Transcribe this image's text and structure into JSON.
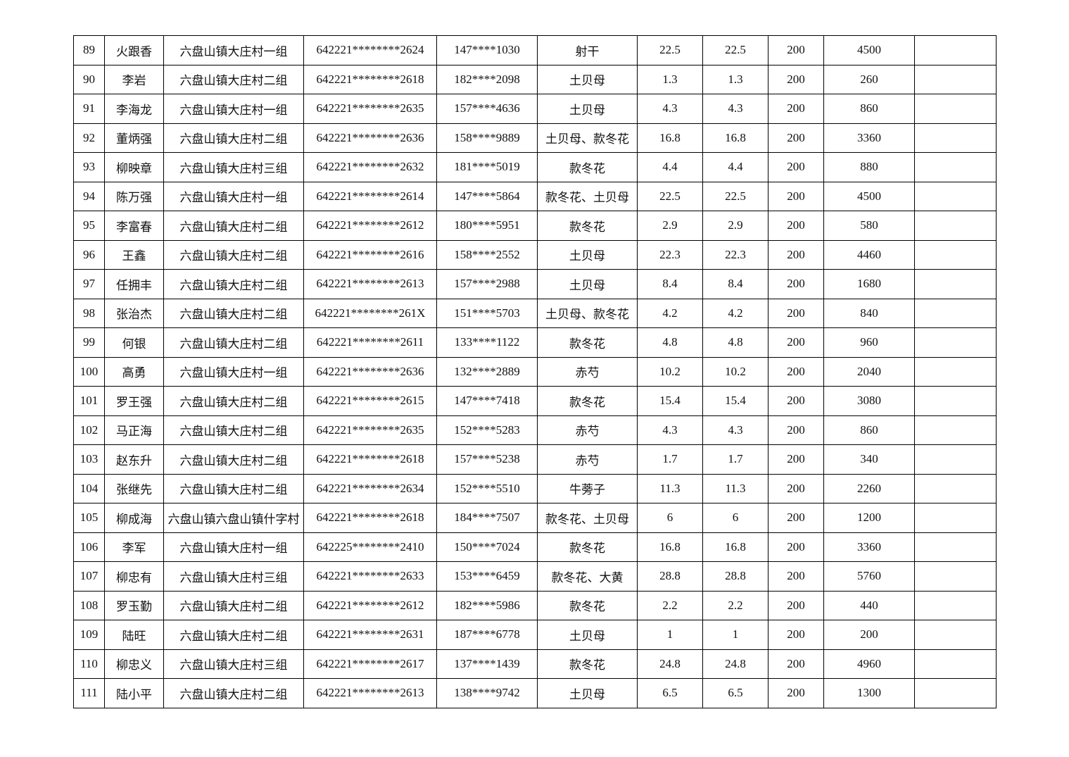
{
  "table": {
    "rows": [
      [
        "89",
        "火跟香",
        "六盘山镇大庄村一组",
        "642221********2624",
        "147****1030",
        "射干",
        "22.5",
        "22.5",
        "200",
        "4500",
        ""
      ],
      [
        "90",
        "李岩",
        "六盘山镇大庄村二组",
        "642221********2618",
        "182****2098",
        "土贝母",
        "1.3",
        "1.3",
        "200",
        "260",
        ""
      ],
      [
        "91",
        "李海龙",
        "六盘山镇大庄村一组",
        "642221********2635",
        "157****4636",
        "土贝母",
        "4.3",
        "4.3",
        "200",
        "860",
        ""
      ],
      [
        "92",
        "董炳强",
        "六盘山镇大庄村二组",
        "642221********2636",
        "158****9889",
        "土贝母、款冬花",
        "16.8",
        "16.8",
        "200",
        "3360",
        ""
      ],
      [
        "93",
        "柳映章",
        "六盘山镇大庄村三组",
        "642221********2632",
        "181****5019",
        "款冬花",
        "4.4",
        "4.4",
        "200",
        "880",
        ""
      ],
      [
        "94",
        "陈万强",
        "六盘山镇大庄村一组",
        "642221********2614",
        "147****5864",
        "款冬花、土贝母",
        "22.5",
        "22.5",
        "200",
        "4500",
        ""
      ],
      [
        "95",
        "李富春",
        "六盘山镇大庄村二组",
        "642221********2612",
        "180****5951",
        "款冬花",
        "2.9",
        "2.9",
        "200",
        "580",
        ""
      ],
      [
        "96",
        "王鑫",
        "六盘山镇大庄村二组",
        "642221********2616",
        "158****2552",
        "土贝母",
        "22.3",
        "22.3",
        "200",
        "4460",
        ""
      ],
      [
        "97",
        "任拥丰",
        "六盘山镇大庄村二组",
        "642221********2613",
        "157****2988",
        "土贝母",
        "8.4",
        "8.4",
        "200",
        "1680",
        ""
      ],
      [
        "98",
        "张治杰",
        "六盘山镇大庄村二组",
        "642221********261X",
        "151****5703",
        "土贝母、款冬花",
        "4.2",
        "4.2",
        "200",
        "840",
        ""
      ],
      [
        "99",
        "何银",
        "六盘山镇大庄村二组",
        "642221********2611",
        "133****1122",
        "款冬花",
        "4.8",
        "4.8",
        "200",
        "960",
        ""
      ],
      [
        "100",
        "高勇",
        "六盘山镇大庄村一组",
        "642221********2636",
        "132****2889",
        "赤芍",
        "10.2",
        "10.2",
        "200",
        "2040",
        ""
      ],
      [
        "101",
        "罗王强",
        "六盘山镇大庄村二组",
        "642221********2615",
        "147****7418",
        "款冬花",
        "15.4",
        "15.4",
        "200",
        "3080",
        ""
      ],
      [
        "102",
        "马正海",
        "六盘山镇大庄村二组",
        "642221********2635",
        "152****5283",
        "赤芍",
        "4.3",
        "4.3",
        "200",
        "860",
        ""
      ],
      [
        "103",
        "赵东升",
        "六盘山镇大庄村二组",
        "642221********2618",
        "157****5238",
        "赤芍",
        "1.7",
        "1.7",
        "200",
        "340",
        ""
      ],
      [
        "104",
        "张继先",
        "六盘山镇大庄村二组",
        "642221********2634",
        "152****5510",
        "牛蒡子",
        "11.3",
        "11.3",
        "200",
        "2260",
        ""
      ],
      [
        "105",
        "柳成海",
        "六盘山镇六盘山镇什字村",
        "642221********2618",
        "184****7507",
        "款冬花、土贝母",
        "6",
        "6",
        "200",
        "1200",
        ""
      ],
      [
        "106",
        "李军",
        "六盘山镇大庄村一组",
        "642225********2410",
        "150****7024",
        "款冬花",
        "16.8",
        "16.8",
        "200",
        "3360",
        ""
      ],
      [
        "107",
        "柳忠有",
        "六盘山镇大庄村三组",
        "642221********2633",
        "153****6459",
        "款冬花、大黄",
        "28.8",
        "28.8",
        "200",
        "5760",
        ""
      ],
      [
        "108",
        "罗玉勤",
        "六盘山镇大庄村二组",
        "642221********2612",
        "182****5986",
        "款冬花",
        "2.2",
        "2.2",
        "200",
        "440",
        ""
      ],
      [
        "109",
        "陆旺",
        "六盘山镇大庄村二组",
        "642221********2631",
        "187****6778",
        "土贝母",
        "1",
        "1",
        "200",
        "200",
        ""
      ],
      [
        "110",
        "柳忠义",
        "六盘山镇大庄村三组",
        "642221********2617",
        "137****1439",
        "款冬花",
        "24.8",
        "24.8",
        "200",
        "4960",
        ""
      ],
      [
        "111",
        "陆小平",
        "六盘山镇大庄村二组",
        "642221********2613",
        "138****9742",
        "土贝母",
        "6.5",
        "6.5",
        "200",
        "1300",
        ""
      ]
    ]
  }
}
